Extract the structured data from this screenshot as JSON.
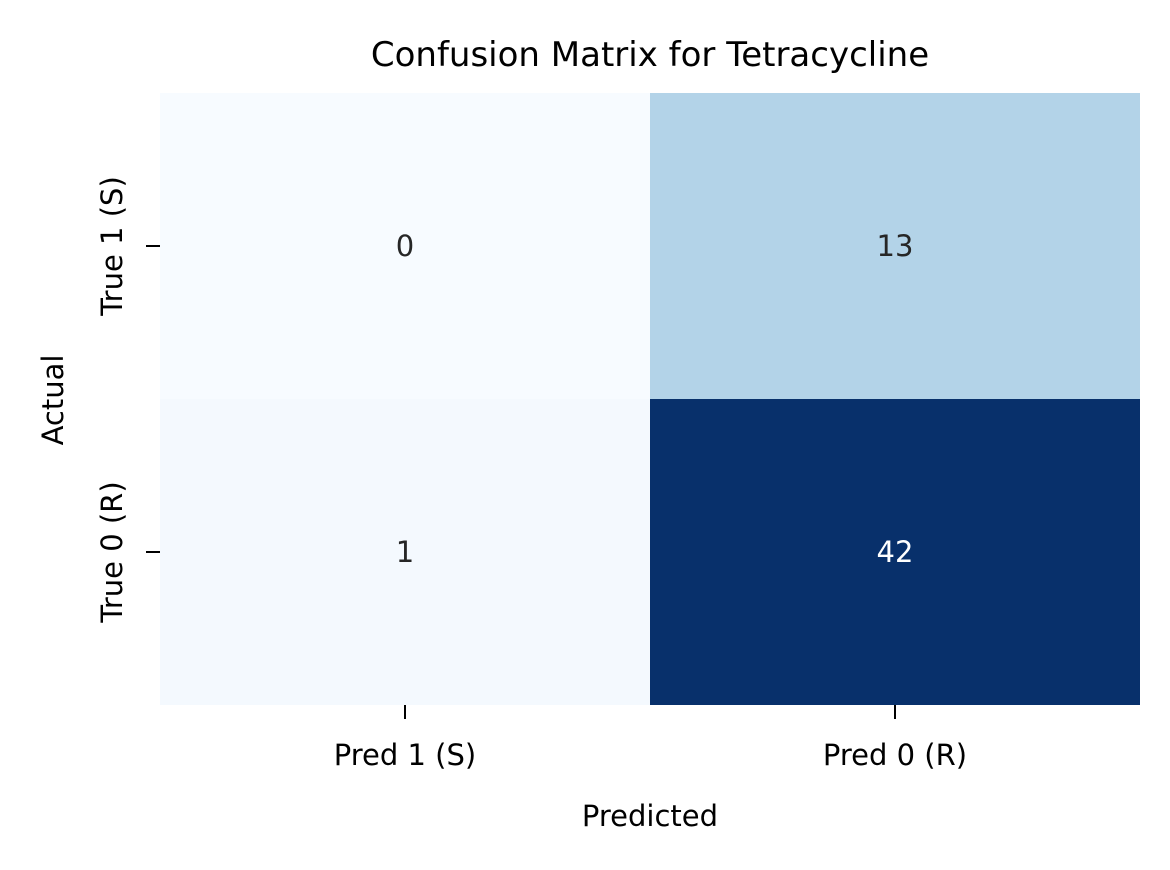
{
  "chart_data": {
    "type": "heatmap",
    "title": "Confusion Matrix for Tetracycline",
    "xlabel": "Predicted",
    "ylabel": "Actual",
    "x_categories": [
      "Pred 1 (S)",
      "Pred 0 (R)"
    ],
    "y_categories": [
      "True 1 (S)",
      "True 0 (R)"
    ],
    "values": [
      [
        0,
        13
      ],
      [
        1,
        42
      ]
    ],
    "colormap": "Blues",
    "colorbar": false,
    "grid": false,
    "cell_colors": [
      [
        "#f7fbff",
        "#b3d3e8"
      ],
      [
        "#f4f9fe",
        "#08306b"
      ]
    ],
    "annotation_colors": [
      [
        "#262626",
        "#262626"
      ],
      [
        "#262626",
        "#ffffff"
      ]
    ]
  }
}
